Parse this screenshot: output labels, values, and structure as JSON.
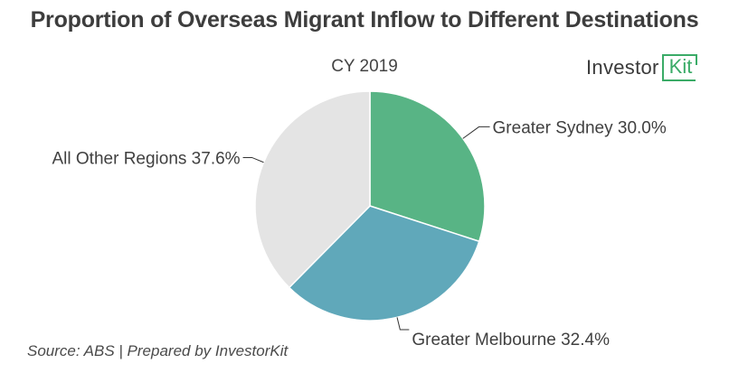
{
  "title": "Proportion of Overseas Migrant Inflow to Different Destinations",
  "subtitle": "CY 2019",
  "logo": {
    "word": "Investor",
    "accent": "Kit",
    "accent_color": "#3aab67"
  },
  "source": "Source: ABS | Prepared by InvestorKit",
  "chart_data": {
    "type": "pie",
    "title": "Proportion of Overseas Migrant Inflow to Different Destinations",
    "subtitle": "CY 2019",
    "start": "12 o'clock, clockwise",
    "slices": [
      {
        "label": "Greater Sydney",
        "value": 30.0,
        "display": "Greater Sydney 30.0%",
        "color": "#58b485"
      },
      {
        "label": "Greater Melbourne",
        "value": 32.4,
        "display": "Greater Melbourne 32.4%",
        "color": "#60a8ba"
      },
      {
        "label": "All Other Regions",
        "value": 37.6,
        "display": "All Other Regions 37.6%",
        "color": "#e4e4e4"
      }
    ],
    "unit": "%"
  }
}
